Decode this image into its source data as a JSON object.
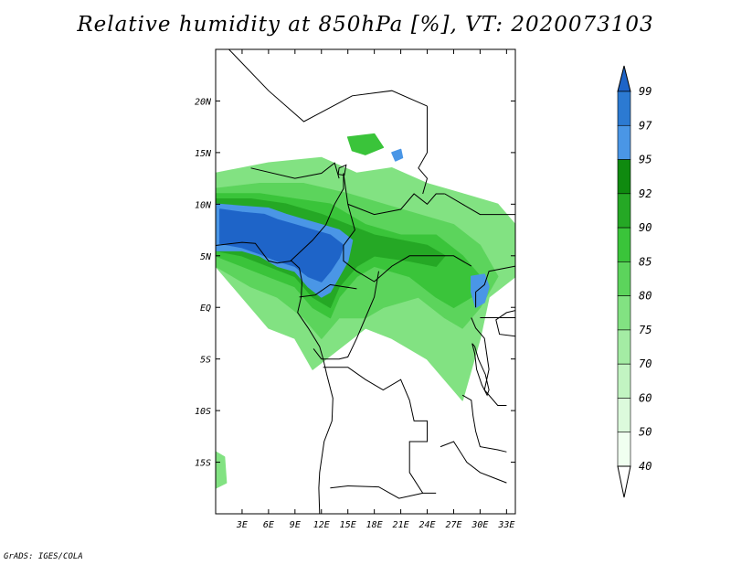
{
  "title": "Relative humidity at 850hPa [%], VT: 2020073103",
  "credit": "GrADS: IGES/COLA",
  "lat_ticks": [
    {
      "label": "20N",
      "lat": 20
    },
    {
      "label": "15N",
      "lat": 15
    },
    {
      "label": "10N",
      "lat": 10
    },
    {
      "label": "5N",
      "lat": 5
    },
    {
      "label": "EQ",
      "lat": 0
    },
    {
      "label": "5S",
      "lat": -5
    },
    {
      "label": "10S",
      "lat": -10
    },
    {
      "label": "15S",
      "lat": -15
    }
  ],
  "lon_ticks": [
    {
      "label": "3E",
      "lon": 3
    },
    {
      "label": "6E",
      "lon": 6
    },
    {
      "label": "9E",
      "lon": 9
    },
    {
      "label": "12E",
      "lon": 12
    },
    {
      "label": "15E",
      "lon": 15
    },
    {
      "label": "18E",
      "lon": 18
    },
    {
      "label": "21E",
      "lon": 21
    },
    {
      "label": "24E",
      "lon": 24
    },
    {
      "label": "27E",
      "lon": 27
    },
    {
      "label": "30E",
      "lon": 30
    },
    {
      "label": "33E",
      "lon": 33
    }
  ],
  "map_extent": {
    "lon_min": 0,
    "lon_max": 34,
    "lat_min": -20,
    "lat_max": 25
  },
  "colorbar": {
    "labels": [
      "99",
      "97",
      "95",
      "92",
      "90",
      "85",
      "80",
      "75",
      "70",
      "60",
      "50",
      "40"
    ],
    "colors": [
      "#1e64c8",
      "#2c7ad2",
      "#4a96e6",
      "#0f8a0f",
      "#25a825",
      "#3ac43a",
      "#5cd45c",
      "#82e282",
      "#a4eca4",
      "#c2f4c2",
      "#dcfadc",
      "#f0fff0",
      "#ffffff"
    ]
  },
  "humidity_regions": [
    {
      "level": "75",
      "color": "#82e282",
      "pts": [
        [
          0,
          13
        ],
        [
          6,
          14
        ],
        [
          12,
          14.5
        ],
        [
          16,
          13
        ],
        [
          20,
          13.5
        ],
        [
          24,
          12
        ],
        [
          28,
          11
        ],
        [
          32,
          10
        ],
        [
          34,
          8
        ],
        [
          34,
          3
        ],
        [
          31,
          1
        ],
        [
          30,
          -3
        ],
        [
          28,
          -9
        ],
        [
          24,
          -5
        ],
        [
          20,
          -3
        ],
        [
          17,
          -2
        ],
        [
          14,
          -4
        ],
        [
          11,
          -6
        ],
        [
          9,
          -3
        ],
        [
          6,
          -2
        ],
        [
          3,
          1
        ],
        [
          0,
          4
        ]
      ]
    },
    {
      "level": "80",
      "color": "#5cd45c",
      "pts": [
        [
          0,
          11.5
        ],
        [
          5,
          12
        ],
        [
          10,
          12
        ],
        [
          15,
          11
        ],
        [
          19,
          10
        ],
        [
          23,
          9
        ],
        [
          27,
          8
        ],
        [
          30,
          6
        ],
        [
          32,
          3
        ],
        [
          30,
          0
        ],
        [
          28,
          -2
        ],
        [
          26,
          -1
        ],
        [
          23,
          1
        ],
        [
          19,
          0
        ],
        [
          17,
          -1
        ],
        [
          14,
          -1
        ],
        [
          12,
          -3
        ],
        [
          10,
          -1
        ],
        [
          7,
          1
        ],
        [
          4,
          2
        ],
        [
          0,
          4
        ]
      ]
    },
    {
      "level": "85",
      "color": "#3ac43a",
      "pts": [
        [
          0,
          11
        ],
        [
          5,
          11
        ],
        [
          9,
          10.5
        ],
        [
          13,
          10
        ],
        [
          17,
          8
        ],
        [
          21,
          7
        ],
        [
          25,
          7
        ],
        [
          28,
          5
        ],
        [
          30,
          3
        ],
        [
          29,
          1
        ],
        [
          27,
          0
        ],
        [
          25,
          1
        ],
        [
          22,
          3
        ],
        [
          18,
          4
        ],
        [
          16,
          3
        ],
        [
          14,
          1
        ],
        [
          13,
          -1
        ],
        [
          11,
          0
        ],
        [
          9,
          2
        ],
        [
          6,
          3
        ],
        [
          3,
          4
        ],
        [
          0,
          5
        ]
      ]
    },
    {
      "level": "90",
      "color": "#25a825",
      "pts": [
        [
          0,
          10.5
        ],
        [
          4,
          10.5
        ],
        [
          8,
          10
        ],
        [
          12,
          9
        ],
        [
          15,
          8
        ],
        [
          18,
          7
        ],
        [
          21,
          6.5
        ],
        [
          24,
          6
        ],
        [
          26,
          5
        ],
        [
          25,
          4
        ],
        [
          22,
          4.5
        ],
        [
          18,
          5
        ],
        [
          16,
          4
        ],
        [
          14,
          2
        ],
        [
          13,
          0
        ],
        [
          11,
          1
        ],
        [
          9,
          3
        ],
        [
          6,
          4
        ],
        [
          3,
          5
        ],
        [
          0,
          5.5
        ]
      ]
    },
    {
      "level": "97",
      "color": "#4a96e6",
      "pts": [
        [
          0,
          10
        ],
        [
          3,
          9.8
        ],
        [
          6,
          9.6
        ],
        [
          8,
          9
        ],
        [
          10,
          8.5
        ],
        [
          12,
          8
        ],
        [
          14,
          7.5
        ],
        [
          15.5,
          6.5
        ],
        [
          15,
          4.5
        ],
        [
          14,
          3
        ],
        [
          13,
          1.5
        ],
        [
          12,
          1
        ],
        [
          10.5,
          2
        ],
        [
          9,
          3.5
        ],
        [
          7,
          4
        ],
        [
          5,
          5
        ],
        [
          3,
          5.5
        ],
        [
          0,
          5.5
        ]
      ]
    },
    {
      "level": "99",
      "color": "#1e64c8",
      "pts": [
        [
          0.5,
          9.5
        ],
        [
          3,
          9.2
        ],
        [
          5.5,
          9
        ],
        [
          7,
          8.5
        ],
        [
          9,
          8
        ],
        [
          11,
          7.5
        ],
        [
          13,
          7
        ],
        [
          14.5,
          6
        ],
        [
          14,
          4.8
        ],
        [
          13,
          3.5
        ],
        [
          12,
          2.5
        ],
        [
          10.5,
          3
        ],
        [
          9,
          4
        ],
        [
          7,
          4.5
        ],
        [
          5,
          5.2
        ],
        [
          3,
          5.8
        ],
        [
          0.5,
          6.2
        ]
      ]
    },
    {
      "level": "97",
      "color": "#4a96e6",
      "pts": [
        [
          29,
          3
        ],
        [
          30.5,
          3.2
        ],
        [
          31,
          2
        ],
        [
          30.5,
          0.5
        ],
        [
          29.5,
          0
        ],
        [
          29,
          1.5
        ]
      ]
    },
    {
      "level": "97",
      "color": "#4a96e6",
      "pts": [
        [
          20,
          15
        ],
        [
          21,
          15.3
        ],
        [
          21.2,
          14.5
        ],
        [
          20.4,
          14.2
        ]
      ]
    },
    {
      "level": "85",
      "color": "#3ac43a",
      "pts": [
        [
          15,
          16.5
        ],
        [
          18,
          16.8
        ],
        [
          19,
          15.5
        ],
        [
          17,
          14.8
        ],
        [
          15.5,
          15.2
        ]
      ]
    },
    {
      "level": "75",
      "color": "#82e282",
      "pts": [
        [
          0,
          -14
        ],
        [
          1,
          -14.5
        ],
        [
          1.2,
          -17
        ],
        [
          0,
          -17.5
        ]
      ]
    }
  ],
  "coastline": [
    [
      0,
      6
    ],
    [
      3,
      6.3
    ],
    [
      4.5,
      6.2
    ],
    [
      6,
      4.5
    ],
    [
      7,
      4.3
    ],
    [
      8.6,
      4.5
    ],
    [
      9.5,
      3.8
    ],
    [
      9.8,
      2.5
    ],
    [
      9.7,
      1
    ],
    [
      9.3,
      -0.5
    ],
    [
      10.5,
      -2
    ],
    [
      11.8,
      -3.8
    ],
    [
      12.2,
      -5
    ],
    [
      12.6,
      -6.5
    ],
    [
      13.3,
      -8.8
    ],
    [
      13.2,
      -11
    ],
    [
      12.3,
      -13
    ],
    [
      11.8,
      -16
    ],
    [
      11.7,
      -17.5
    ],
    [
      11.8,
      -20
    ]
  ],
  "borders": [
    [
      [
        1.5,
        25
      ],
      [
        6,
        21
      ],
      [
        10,
        18
      ],
      [
        15.5,
        20.5
      ],
      [
        20,
        21
      ],
      [
        24,
        19.5
      ]
    ],
    [
      [
        4,
        13.5
      ],
      [
        9,
        12.5
      ],
      [
        12,
        13
      ],
      [
        13.5,
        14
      ],
      [
        14,
        12.5
      ]
    ],
    [
      [
        14.5,
        13
      ],
      [
        15,
        10
      ],
      [
        15.8,
        7.5
      ],
      [
        14.5,
        6
      ],
      [
        14.5,
        4.5
      ],
      [
        16,
        3.5
      ],
      [
        18,
        2.5
      ],
      [
        20,
        4
      ],
      [
        22,
        5
      ],
      [
        24,
        5
      ],
      [
        26,
        5
      ],
      [
        27,
        5
      ],
      [
        29,
        4
      ]
    ],
    [
      [
        8.5,
        4.5
      ],
      [
        11,
        6.5
      ],
      [
        12.5,
        8
      ],
      [
        13.5,
        10
      ],
      [
        14.5,
        11.5
      ],
      [
        14.5,
        13
      ]
    ],
    [
      [
        15,
        10
      ],
      [
        18,
        9
      ],
      [
        21,
        9.5
      ],
      [
        22.5,
        11
      ],
      [
        24,
        10
      ],
      [
        25,
        11
      ],
      [
        26,
        11
      ]
    ],
    [
      [
        24,
        19.5
      ],
      [
        24,
        15
      ],
      [
        23,
        13.5
      ],
      [
        24,
        12.5
      ],
      [
        23.5,
        11
      ]
    ],
    [
      [
        26,
        11
      ],
      [
        28,
        10
      ],
      [
        30,
        9
      ],
      [
        32,
        9
      ],
      [
        34,
        9
      ]
    ],
    [
      [
        9.5,
        1
      ],
      [
        11.3,
        1.2
      ],
      [
        13,
        2.2
      ],
      [
        14.5,
        2
      ],
      [
        16,
        1.8
      ]
    ],
    [
      [
        11.1,
        -4
      ],
      [
        12,
        -5
      ],
      [
        14,
        -5
      ],
      [
        15,
        -4.8
      ],
      [
        16,
        -3
      ],
      [
        17,
        -1
      ],
      [
        18,
        1
      ],
      [
        18.5,
        3.5
      ]
    ],
    [
      [
        12.2,
        -5.8
      ],
      [
        15,
        -5.8
      ],
      [
        17,
        -7
      ],
      [
        19,
        -8
      ],
      [
        21,
        -7
      ],
      [
        22,
        -9
      ],
      [
        22.5,
        -11
      ],
      [
        24,
        -11
      ],
      [
        24,
        -13
      ],
      [
        22,
        -13
      ],
      [
        22,
        -16
      ],
      [
        23.5,
        -18
      ],
      [
        25,
        -18
      ]
    ],
    [
      [
        13,
        -17.5
      ],
      [
        15,
        -17.3
      ],
      [
        18.5,
        -17.4
      ],
      [
        20.8,
        -18.5
      ],
      [
        23.5,
        -18
      ]
    ],
    [
      [
        29,
        -1
      ],
      [
        29.5,
        -2
      ],
      [
        30.5,
        -3
      ],
      [
        31,
        -6
      ],
      [
        30.5,
        -8
      ],
      [
        32,
        -9.5
      ],
      [
        33,
        -9.5
      ]
    ],
    [
      [
        30,
        -1
      ],
      [
        33,
        -1
      ],
      [
        34,
        -1
      ]
    ],
    [
      [
        29.5,
        0
      ],
      [
        29.5,
        1.5
      ],
      [
        30.5,
        2.2
      ],
      [
        31,
        3.5
      ],
      [
        34,
        4
      ]
    ],
    [
      [
        28,
        -8.5
      ],
      [
        29,
        -9
      ],
      [
        29.2,
        -10.5
      ],
      [
        29.5,
        -12
      ],
      [
        30,
        -13.5
      ],
      [
        32,
        -13.8
      ],
      [
        33,
        -14
      ]
    ],
    [
      [
        25.5,
        -13.5
      ],
      [
        27,
        -13
      ],
      [
        28.5,
        -15
      ],
      [
        30,
        -16
      ],
      [
        31.5,
        -16.5
      ],
      [
        33,
        -17
      ]
    ]
  ],
  "lakes": [
    [
      [
        29.1,
        -3.5
      ],
      [
        29.4,
        -4.5
      ],
      [
        29.6,
        -6
      ],
      [
        30.2,
        -7.5
      ],
      [
        30.8,
        -8.5
      ],
      [
        31,
        -8
      ],
      [
        30.6,
        -6.5
      ],
      [
        29.8,
        -5
      ],
      [
        29.4,
        -3.8
      ]
    ],
    [
      [
        33,
        -0.5
      ],
      [
        34,
        -0.3
      ],
      [
        34,
        -2.8
      ],
      [
        32.2,
        -2.6
      ],
      [
        31.8,
        -1.2
      ]
    ],
    [
      [
        34,
        -9.5
      ],
      [
        34.5,
        -10.5
      ],
      [
        34.8,
        -12.5
      ],
      [
        34.5,
        -14
      ],
      [
        34.2,
        -13
      ]
    ],
    [
      [
        14,
        13.5
      ],
      [
        14.8,
        13.8
      ],
      [
        14.6,
        12.8
      ],
      [
        13.9,
        12.9
      ]
    ]
  ]
}
